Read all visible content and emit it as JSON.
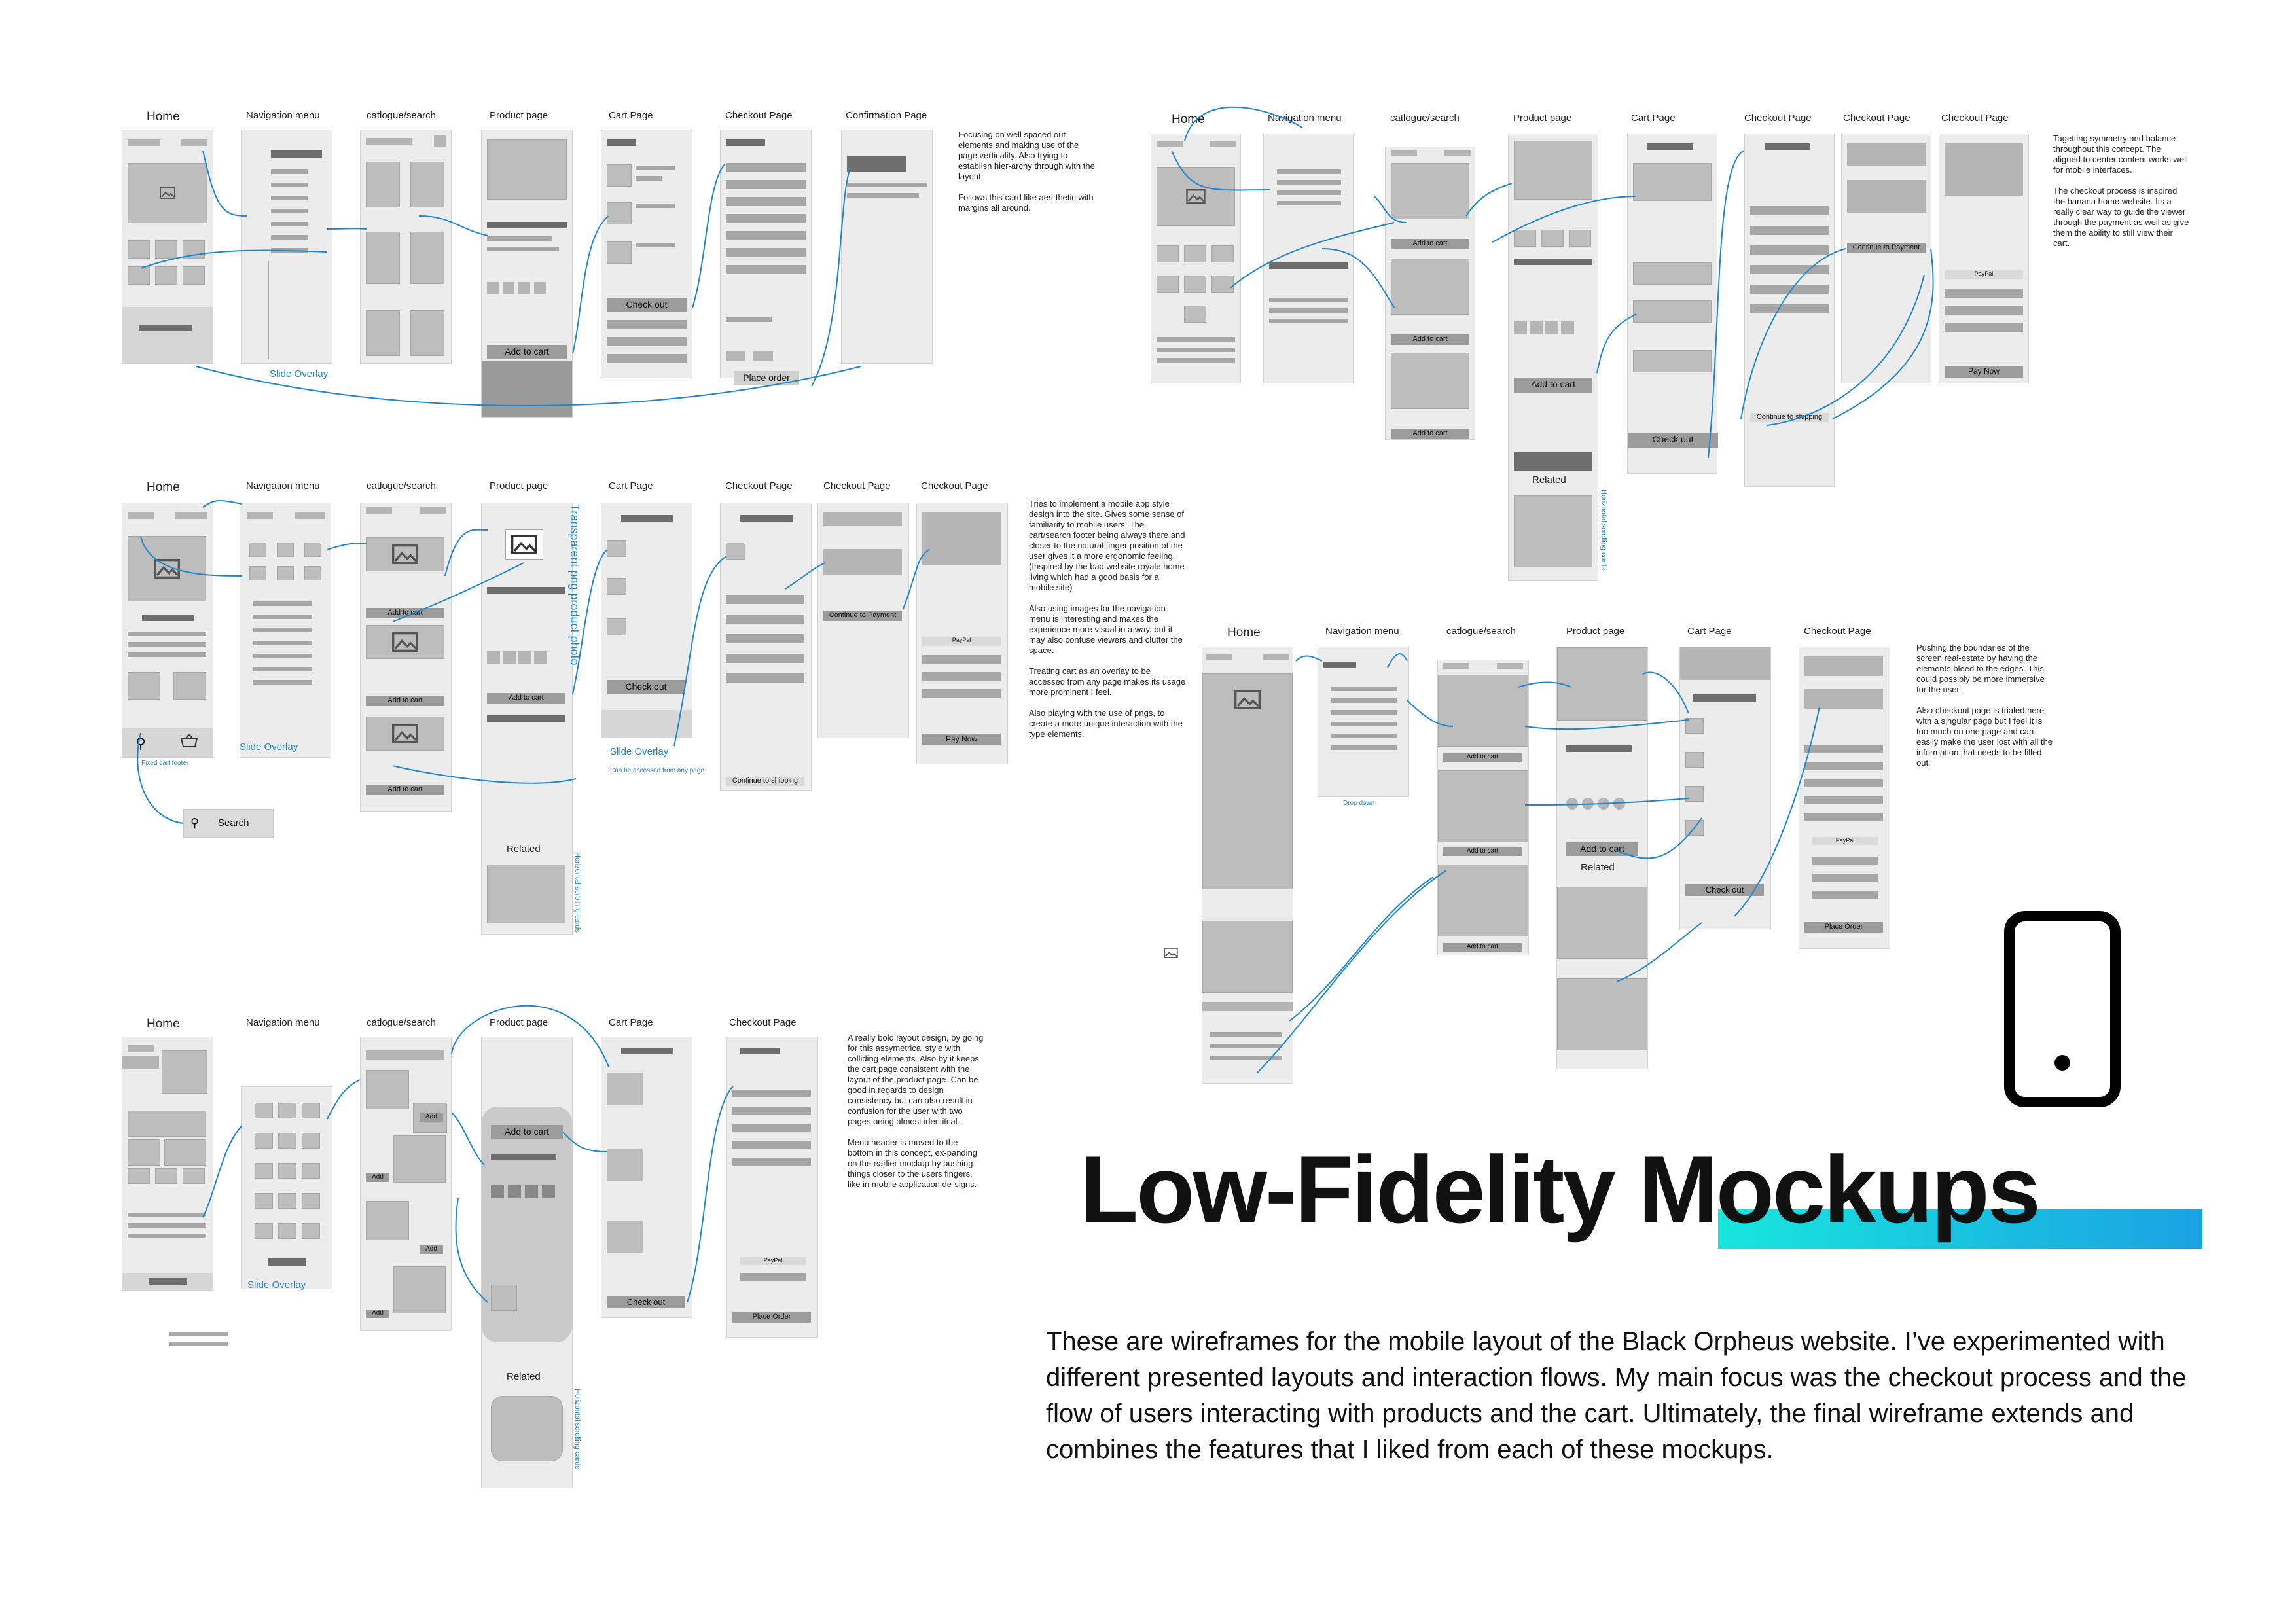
{
  "title": "Low-Fidelity Mockups",
  "description": "These are wireframes for the mobile layout of the Black Orpheus website. I’ve experimented with different presented layouts and interaction flows. My main focus was the checkout process and the flow of users interacting with products and the cart. Ultimately, the final wireframe extends and combines the features that I liked from each of these mockups.",
  "icons": {
    "phone": "smartphone-outline-icon"
  },
  "accent_gradient": [
    "#18e6dd",
    "#1aa1e3"
  ],
  "flow_color": "#1f86c9",
  "mockup1": {
    "labels": [
      "Home",
      "Navigation menu",
      "catlogue/search",
      "Product page",
      "Cart Page",
      "Checkout Page",
      "Confirmation Page"
    ],
    "buttons": {
      "add_to_cart": "Add to cart",
      "check_out": "Check out",
      "place_order": "Place order"
    },
    "slide_overlay": "Slide Overlay",
    "notes": [
      "Focusing on well spaced out elements and making use of the page verticality. Also trying to establish hier-archy through with the layout.",
      "Follows this card like aes-thetic with margins all around."
    ]
  },
  "mockup2": {
    "labels": [
      "Home",
      "Navigation menu",
      "catlogue/search",
      "Product page",
      "Cart Page",
      "Checkout Page",
      "Checkout Page",
      "Checkout Page"
    ],
    "buttons": {
      "add_to_cart_small": "Add to cart",
      "add_to_cart": "Add to cart",
      "check_out": "Check out",
      "continue_payment": "Continue to Payment",
      "continue_shipping": "Continue to shipping",
      "pay_now": "Pay Now",
      "paypal": "PayPal"
    },
    "related": "Related",
    "horizontal_scrolling": "Horizontal scrolling cards",
    "notes": [
      "Tagetting symmetry and balance throughout this concept. The aligned to center content works well for mobile interfaces.",
      "The checkout process is inspired the banana home website. Its a really clear way to guide the viewer through the payment as well as give them the ability to still view their cart."
    ]
  },
  "mockup3": {
    "labels": [
      "Home",
      "Navigation menu",
      "catlogue/search",
      "Product page",
      "Cart Page",
      "Checkout Page",
      "Checkout Page",
      "Checkout Page"
    ],
    "buttons": {
      "add_to_cart_small": "Add to cart",
      "add_to_cart": "Add to cart",
      "check_out": "Check out",
      "continue_payment": "Continue to Payment",
      "continue_shipping": "Continue to shipping",
      "pay_now": "Pay Now",
      "paypal": "PayPal"
    },
    "fixed_cart_footer": "Fixed cart footer",
    "search": "Search",
    "slide_overlay": "Slide Overlay",
    "slide_overlay_cart": "Slide Overlay",
    "accessed_any_page": "Can be accessed from any page",
    "transparent_png": "Transparent png product photo",
    "related": "Related",
    "horizontal_scrolling": "Horizontal scrolling cards",
    "notes": [
      "Tries to implement a mobile app style design into the site. Gives some sense of familiarity to mobile users. The cart/search footer being always there and closer to the natural finger position of the user gives it a more ergonomic feeling. (Inspired by the bad website royale home living which had a good basis for a mobile site)",
      "Also using images for the navigation menu is interesting and makes the experience more visual in a way, but it may also confuse viewers and clutter the space.",
      "Treating cart as an overlay to be accessed from any page makes its usage more prominent I feel.",
      "Also playing with the use of pngs, to create a more unique interaction with the type elements."
    ]
  },
  "mockup4": {
    "labels": [
      "Home",
      "Navigation menu",
      "catlogue/search",
      "Product page",
      "Cart Page",
      "Checkout Page"
    ],
    "buttons": {
      "add_to_cart_small": "Add to cart",
      "add_to_cart": "Add to cart",
      "check_out": "Check out",
      "place_order": "Place Order",
      "paypal": "PayPal"
    },
    "dropdown": "Drop down",
    "related": "Related",
    "notes": [
      "Pushing the boundaries of the screen real-estate by having the elements bleed to the edges. This could possibly be more immersive for the user.",
      "Also checkout page is trialed here with a singular page but I feel it is too much on one page and can easily make the user lost with all the information that needs to be filled out."
    ]
  },
  "mockup5": {
    "labels": [
      "Home",
      "Navigation menu",
      "catlogue/search",
      "Product page",
      "Cart Page",
      "Checkout Page"
    ],
    "buttons": {
      "add": "Add",
      "add_to_cart": "Add to cart",
      "check_out": "Check out",
      "place_order": "Place Order",
      "paypal": "PayPal"
    },
    "slide_overlay": "Slide Overlay",
    "related": "Related",
    "horizontal_scrolling": "Horizontal scrolling cards",
    "notes": [
      "A really bold layout design, by going for this assymetrical style with colliding elements. Also by it keeps the cart page consistent with the layout of the product page. Can be good in regards to design consistency but can also result in confusion for the user with two pages being almost identitcal.",
      "Menu header is moved to the bottom in this concept, ex-panding on the earlier mockup by pushing things closer to the users fingers, like in mobile application de-signs."
    ]
  }
}
